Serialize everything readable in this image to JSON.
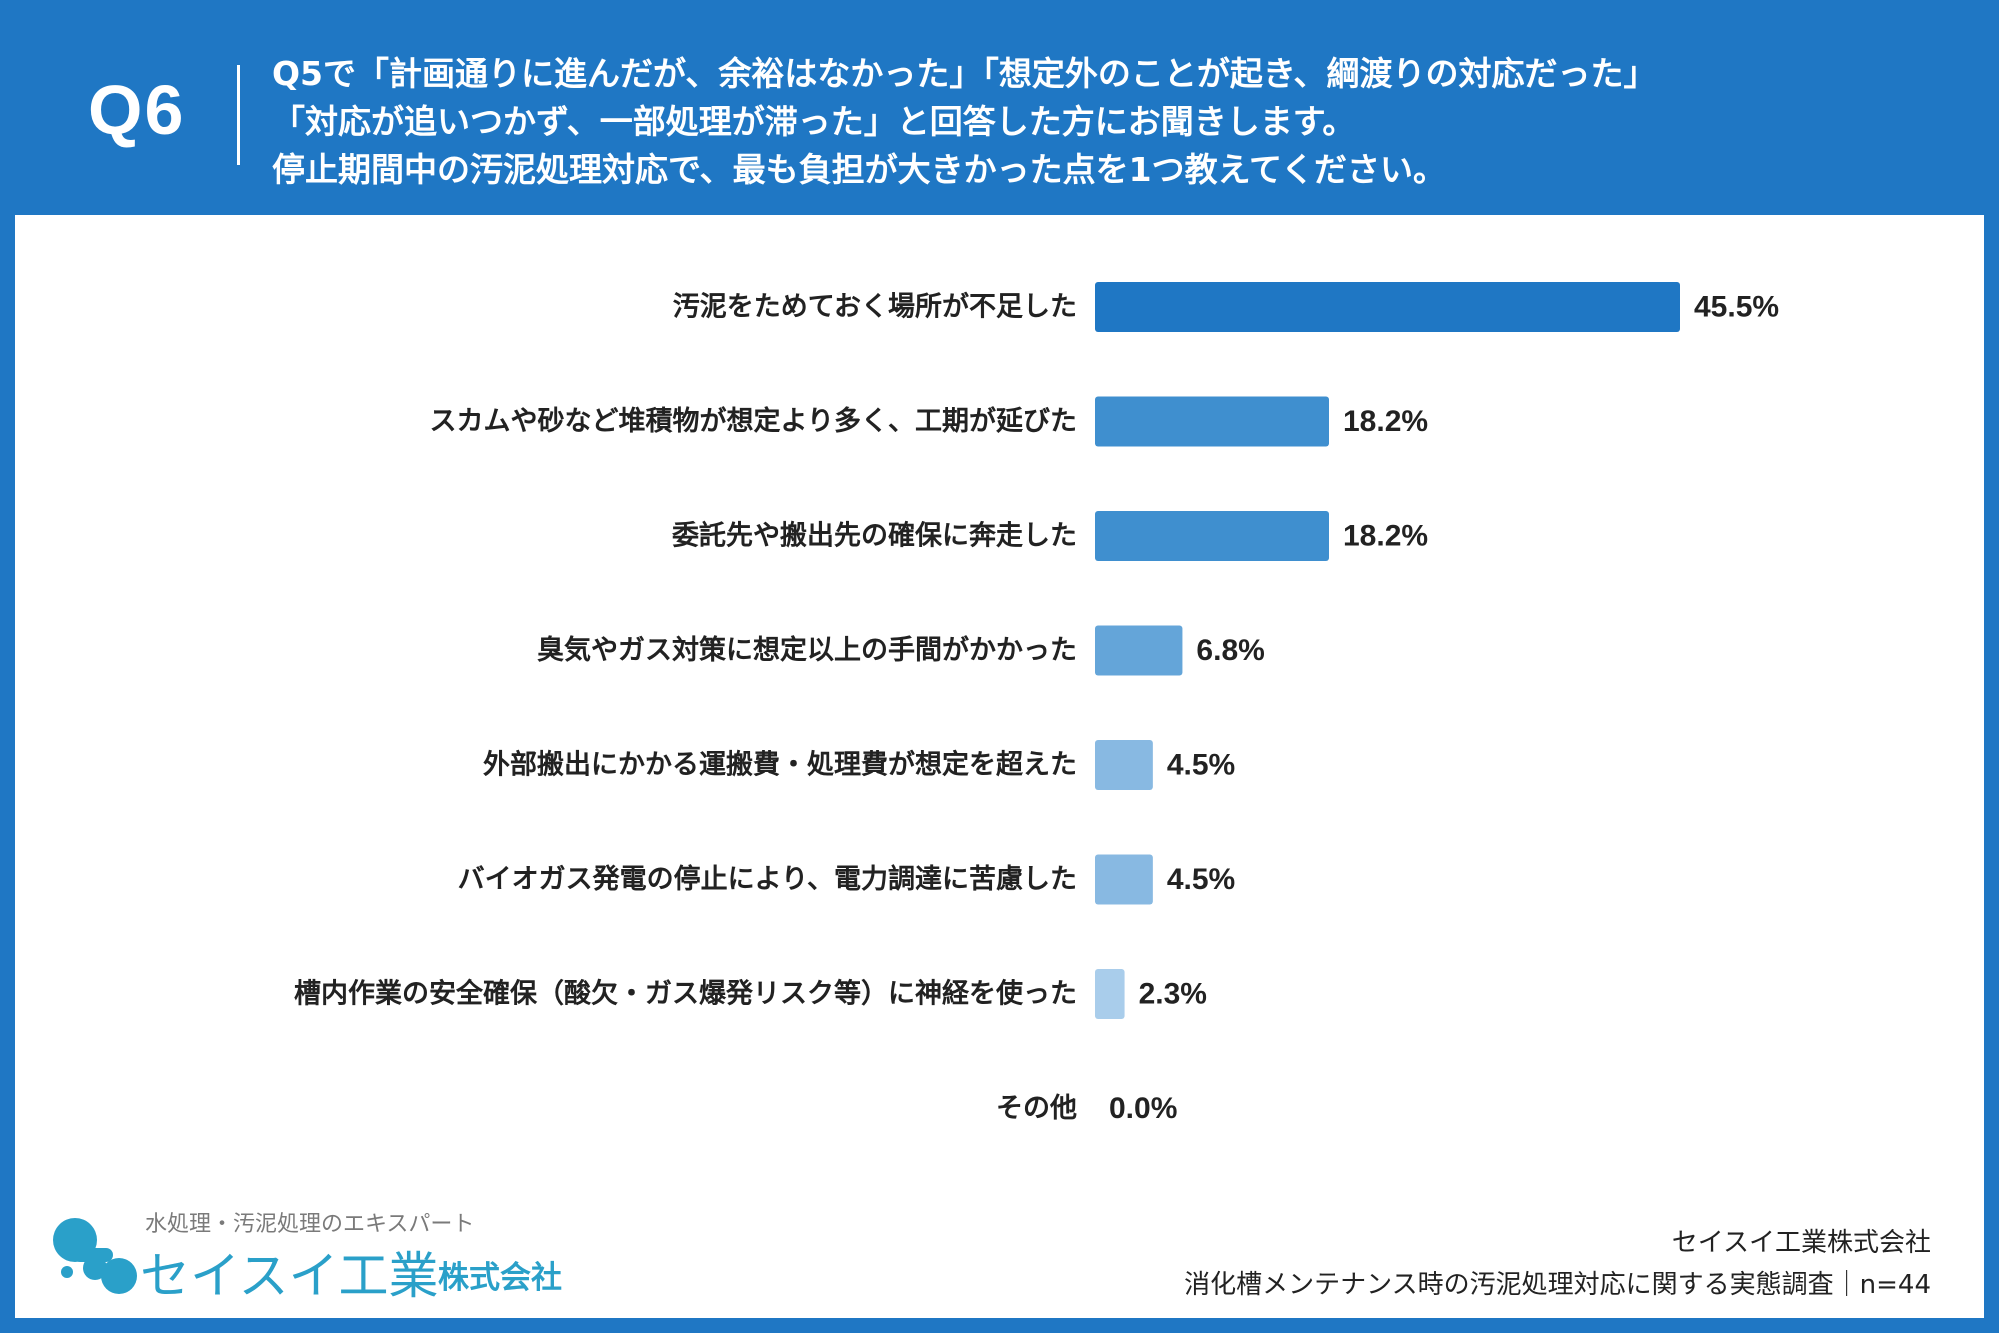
{
  "header": {
    "question_number": "Q6",
    "question_lines": [
      "Q5で「計画通りに進んだが、余裕はなかった」「想定外のことが起き、綱渡りの対応だった」",
      "「対応が追いつかず、一部処理が滞った」と回答した方にお聞きします。",
      "停止期間中の汚泥処理対応で、最も負担が大きかった点を1つ教えてください。"
    ]
  },
  "chart_data": {
    "type": "bar",
    "orientation": "horizontal",
    "title": "",
    "xlabel": "",
    "ylabel": "",
    "xlim": [
      0,
      45.5
    ],
    "categories": [
      "汚泥をためておく場所が不足した",
      "スカムや砂など堆積物が想定より多く、工期が延びた",
      "委託先や搬出先の確保に奔走した",
      "臭気やガス対策に想定以上の手間がかかった",
      "外部搬出にかかる運搬費・処理費が想定を超えた",
      "バイオガス発電の停止により、電力調達に苦慮した",
      "槽内作業の安全確保（酸欠・ガス爆発リスク等）に神経を使った",
      "その他"
    ],
    "values": [
      45.5,
      18.2,
      18.2,
      6.8,
      4.5,
      4.5,
      2.3,
      0.0
    ],
    "value_labels": [
      "45.5%",
      "18.2%",
      "18.2%",
      "6.8%",
      "4.5%",
      "4.5%",
      "2.3%",
      "0.0%"
    ],
    "bar_colors": [
      "#1f77c4",
      "#3f8fcf",
      "#3f8fcf",
      "#64a5d9",
      "#88b9e2",
      "#88b9e2",
      "#a9cdeb",
      "#c8dff3"
    ]
  },
  "footer": {
    "logo_tagline": "水処理・汚泥処理のエキスパート",
    "logo_name": "セイスイ工業",
    "logo_suffix": "株式会社",
    "company": "セイスイ工業株式会社",
    "survey": "消化槽メンテナンス時の汚泥処理対応に関する実態調査｜n=44"
  },
  "colors": {
    "header_bg": "#1f77c4",
    "panel_bg": "#ffffff",
    "text": "#222222",
    "logo": "#2aa0c9"
  }
}
